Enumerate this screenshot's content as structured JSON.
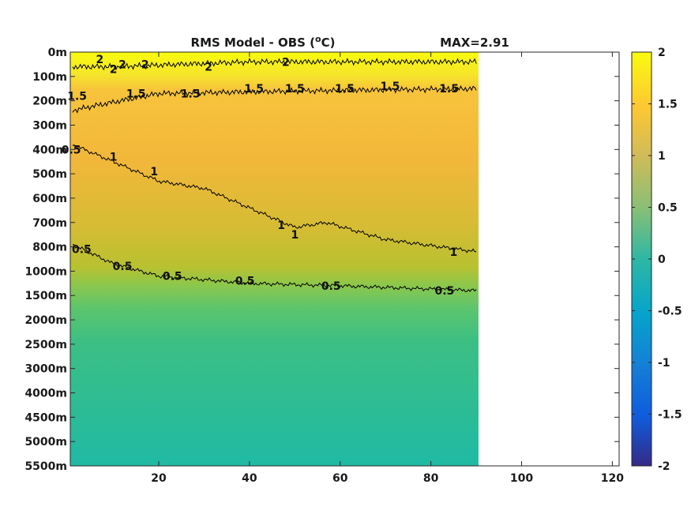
{
  "chart_data": {
    "type": "heatmap",
    "title": "RMS Model - OBS (",
    "title_sup": "o",
    "title_unit": "C)",
    "max_label": "MAX=2.91",
    "x_ticks": [
      20,
      40,
      60,
      80,
      100,
      120
    ],
    "xlim": [
      0.5,
      121.5
    ],
    "x_data_extent": [
      0.5,
      90.5
    ],
    "y_ticks": [
      "0m",
      "100m",
      "200m",
      "300m",
      "400m",
      "500m",
      "600m",
      "700m",
      "800m",
      "1000m",
      "1500m",
      "2000m",
      "2500m",
      "3000m",
      "4000m",
      "4500m",
      "5000m",
      "5500m"
    ],
    "colorbar": {
      "colormap": "parula",
      "clim": [
        -2,
        2
      ],
      "ticks": [
        "2",
        "1.5",
        "1",
        "0.5",
        "0",
        "-0.5",
        "-1",
        "-1.5",
        "-2"
      ]
    },
    "contours": [
      {
        "level": 2,
        "depth_index_profile": [
          [
            1,
            0.6
          ],
          [
            10,
            0.6
          ],
          [
            40,
            0.4
          ],
          [
            90,
            0.4
          ]
        ]
      },
      {
        "level": 1.5,
        "depth_index_profile": [
          [
            1,
            2.4
          ],
          [
            6,
            2.2
          ],
          [
            20,
            1.7
          ],
          [
            50,
            1.6
          ],
          [
            90,
            1.5
          ]
        ]
      },
      {
        "level": 1,
        "depth_index_profile": [
          [
            1,
            3.8
          ],
          [
            10,
            4.5
          ],
          [
            20,
            5.3
          ],
          [
            30,
            5.6
          ],
          [
            40,
            6.4
          ],
          [
            50,
            7.2
          ],
          [
            57,
            7.0
          ],
          [
            70,
            7.7
          ],
          [
            90,
            8.2
          ]
        ]
      },
      {
        "level": 0.5,
        "depth_index_profile": [
          [
            1,
            7.9
          ],
          [
            10,
            8.7
          ],
          [
            20,
            9.2
          ],
          [
            40,
            9.5
          ],
          [
            60,
            9.6
          ],
          [
            90,
            9.8
          ]
        ]
      }
    ],
    "contour_labels": [
      {
        "text": "2",
        "x": 7,
        "y_index": 0.3
      },
      {
        "text": "2",
        "x": 10,
        "y_index": 0.7
      },
      {
        "text": "2",
        "x": 12,
        "y_index": 0.5
      },
      {
        "text": "2",
        "x": 17,
        "y_index": 0.5
      },
      {
        "text": "2",
        "x": 31,
        "y_index": 0.6
      },
      {
        "text": "2",
        "x": 48,
        "y_index": 0.4
      },
      {
        "text": "1.5",
        "x": 2,
        "y_index": 1.8
      },
      {
        "text": "1.5",
        "x": 15,
        "y_index": 1.7
      },
      {
        "text": "1.5",
        "x": 27,
        "y_index": 1.7
      },
      {
        "text": "1.5",
        "x": 41,
        "y_index": 1.5
      },
      {
        "text": "1.5",
        "x": 50,
        "y_index": 1.5
      },
      {
        "text": "1.5",
        "x": 61,
        "y_index": 1.5
      },
      {
        "text": "1.5",
        "x": 71,
        "y_index": 1.4
      },
      {
        "text": "1.5",
        "x": 84,
        "y_index": 1.5
      },
      {
        "text": "0.5",
        "x": 0.7,
        "y_index": 4.0
      },
      {
        "text": "1",
        "x": 10,
        "y_index": 4.3
      },
      {
        "text": "1",
        "x": 19,
        "y_index": 4.9
      },
      {
        "text": "1",
        "x": 47,
        "y_index": 7.1
      },
      {
        "text": "1",
        "x": 50,
        "y_index": 7.5
      },
      {
        "text": "1",
        "x": 85,
        "y_index": 8.2
      },
      {
        "text": "0.5",
        "x": 3,
        "y_index": 8.1
      },
      {
        "text": "0.5",
        "x": 12,
        "y_index": 8.8
      },
      {
        "text": "0.5",
        "x": 23,
        "y_index": 9.2
      },
      {
        "text": "0.5",
        "x": 39,
        "y_index": 9.4
      },
      {
        "text": "0.5",
        "x": 58,
        "y_index": 9.6
      },
      {
        "text": "0.5",
        "x": 83,
        "y_index": 9.8
      }
    ]
  }
}
